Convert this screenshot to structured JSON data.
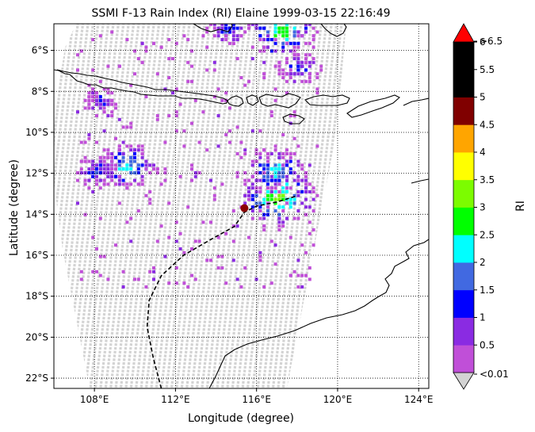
{
  "chart_data": {
    "type": "heatmap",
    "title": "SSMI F-13 Rain Index (RI) Elaine 1999-03-15 22:16:49",
    "xlabel": "Longitude (degree)",
    "ylabel": "Latitude (degree)",
    "xlim": [
      106,
      124.5
    ],
    "ylim": [
      -22.5,
      -4.7
    ],
    "x_ticks": [
      108,
      112,
      116,
      120,
      124
    ],
    "x_tick_labels": [
      "108°E",
      "112°E",
      "116°E",
      "120°E",
      "124°E"
    ],
    "y_ticks": [
      -6,
      -8,
      -10,
      -12,
      -14,
      -16,
      -18,
      -20,
      -22
    ],
    "y_tick_labels": [
      "6°S",
      "8°S",
      "10°S",
      "12°S",
      "14°S",
      "16°S",
      "18°S",
      "20°S",
      "22°S"
    ],
    "grid": "dotted",
    "colorbar": {
      "label": "RI",
      "tick_labels": [
        "<0.01",
        "0.5",
        "1",
        "1.5",
        "2",
        "2.5",
        "3",
        "3.5",
        "4",
        "4.5",
        "5",
        "5.5",
        "6",
        ">6.5"
      ],
      "colors": [
        "#c04fd8",
        "#8a2be2",
        "#0000ff",
        "#4169e1",
        "#00ffff",
        "#00ff00",
        "#7cfc00",
        "#ffff00",
        "#ffa500",
        "#800000",
        "#000000",
        "#000000"
      ],
      "under_color": "#d3d3d3",
      "over_color": "#ff0000"
    },
    "swath_color": "#d3d3d3",
    "storm_track": {
      "name": "Elaine",
      "points": [
        [
          111.3,
          -22.5
        ],
        [
          110.9,
          -21.0
        ],
        [
          110.6,
          -19.5
        ],
        [
          110.7,
          -18.2
        ],
        [
          111.3,
          -17.0
        ],
        [
          112.4,
          -16.0
        ],
        [
          113.8,
          -15.2
        ],
        [
          114.9,
          -14.6
        ],
        [
          115.4,
          -13.9
        ],
        [
          116.0,
          -13.6
        ],
        [
          117.0,
          -13.4
        ],
        [
          118.0,
          -13.1
        ]
      ],
      "current_position": [
        115.4,
        -13.7
      ]
    },
    "rain_clusters": [
      {
        "lon": 117.0,
        "lat": -13.1,
        "peak_index": 3.5
      },
      {
        "lon": 109.5,
        "lat": -11.6,
        "peak_index": 2.5
      },
      {
        "lon": 117.2,
        "lat": -5.0,
        "peak_index": 3.0
      },
      {
        "lon": 116.8,
        "lat": -11.8,
        "peak_index": 2.5
      },
      {
        "lon": 108.0,
        "lat": -11.8,
        "peak_index": 1.5
      },
      {
        "lon": 118.0,
        "lat": -6.8,
        "peak_index": 1.5
      },
      {
        "lon": 114.5,
        "lat": -4.9,
        "peak_index": 1.5
      },
      {
        "lon": 108.2,
        "lat": -8.4,
        "peak_index": 1.0
      }
    ]
  }
}
